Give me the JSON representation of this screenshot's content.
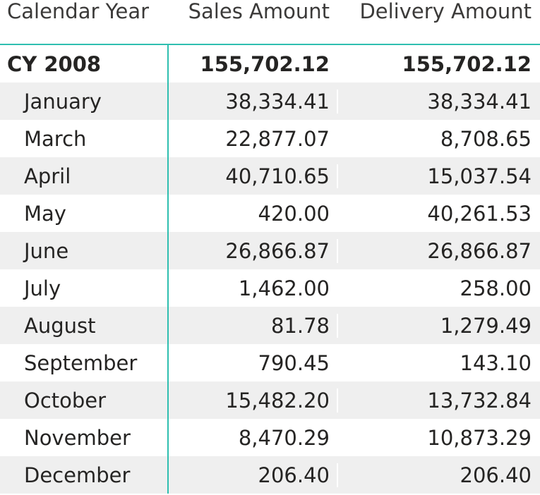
{
  "header": {
    "col1": "Calendar Year",
    "col2": "Sales Amount",
    "col3": "Delivery Amount"
  },
  "total": {
    "label": "CY 2008",
    "sales": "155,702.12",
    "delivery": "155,702.12"
  },
  "rows": [
    {
      "month": "January",
      "sales": "38,334.41",
      "delivery": "38,334.41"
    },
    {
      "month": "March",
      "sales": "22,877.07",
      "delivery": "8,708.65"
    },
    {
      "month": "April",
      "sales": "40,710.65",
      "delivery": "15,037.54"
    },
    {
      "month": "May",
      "sales": "420.00",
      "delivery": "40,261.53"
    },
    {
      "month": "June",
      "sales": "26,866.87",
      "delivery": "26,866.87"
    },
    {
      "month": "July",
      "sales": "1,462.00",
      "delivery": "258.00"
    },
    {
      "month": "August",
      "sales": "81.78",
      "delivery": "1,279.49"
    },
    {
      "month": "September",
      "sales": "790.45",
      "delivery": "143.10"
    },
    {
      "month": "October",
      "sales": "15,482.20",
      "delivery": "13,732.84"
    },
    {
      "month": "November",
      "sales": "8,470.29",
      "delivery": "10,873.29"
    },
    {
      "month": "December",
      "sales": "206.40",
      "delivery": "206.40"
    }
  ],
  "colors": {
    "accent": "#2fbfb0",
    "shade": "#efefef"
  }
}
